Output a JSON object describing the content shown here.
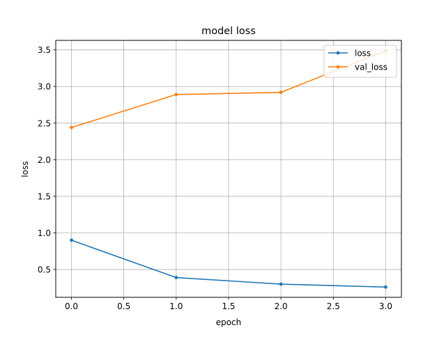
{
  "chart_data": {
    "type": "line",
    "title": "model loss",
    "xlabel": "epoch",
    "ylabel": "loss",
    "x": [
      0,
      1,
      2,
      3
    ],
    "series": [
      {
        "name": "loss",
        "values": [
          0.9,
          0.39,
          0.3,
          0.26
        ],
        "color": "#1f77b4"
      },
      {
        "name": "val_loss",
        "values": [
          2.44,
          2.89,
          2.92,
          3.49
        ],
        "color": "#ff7f0e"
      }
    ],
    "xlim": [
      -0.15,
      3.15
    ],
    "ylim": [
      0.12,
      3.63
    ],
    "xticks": [
      0.0,
      0.5,
      1.0,
      1.5,
      2.0,
      2.5,
      3.0
    ],
    "xtick_labels": [
      "0.0",
      "0.5",
      "1.0",
      "1.5",
      "2.0",
      "2.5",
      "3.0"
    ],
    "yticks": [
      0.5,
      1.0,
      1.5,
      2.0,
      2.5,
      3.0,
      3.5
    ],
    "ytick_labels": [
      "0.5",
      "1.0",
      "1.5",
      "2.0",
      "2.5",
      "3.0",
      "3.5"
    ],
    "grid": true,
    "legend_position": "upper-right",
    "marker": "dot"
  }
}
